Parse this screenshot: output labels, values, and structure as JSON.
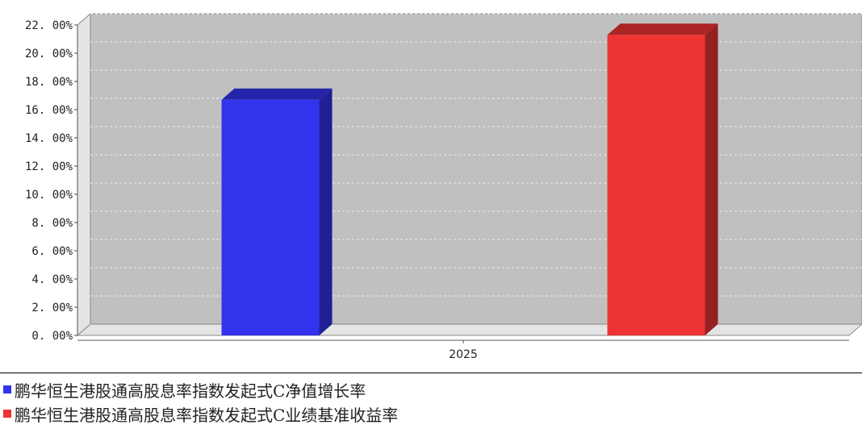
{
  "chart_data": {
    "type": "bar",
    "categories": [
      "2025"
    ],
    "series": [
      {
        "name": "鹏华恒生港股通高股息率指数发起式C净值增长率",
        "values": [
          16.7
        ],
        "color": "#3333ee"
      },
      {
        "name": "鹏华恒生港股通高股息率指数发起式C业绩基准收益率",
        "values": [
          21.3
        ],
        "color": "#ee3333"
      }
    ],
    "ylim": [
      0,
      22
    ],
    "yticks": [
      "0. 00%",
      "2. 00%",
      "4. 00%",
      "6. 00%",
      "8. 00%",
      "10. 00%",
      "12. 00%",
      "14. 00%",
      "16. 00%",
      "18. 00%",
      "20. 00%",
      "22. 00%"
    ],
    "title": "",
    "xlabel": "",
    "ylabel": "",
    "grid": true,
    "legend_position": "bottom",
    "plot_background": "#c0c0c0"
  }
}
